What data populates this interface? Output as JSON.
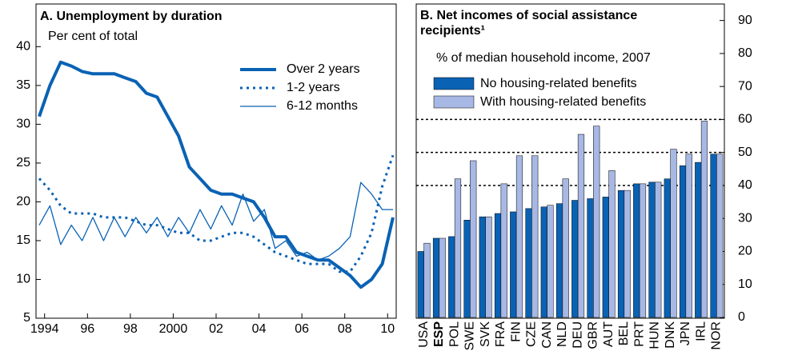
{
  "chart_data": [
    {
      "type": "line",
      "title": "A. Unemployment by duration",
      "subtitle": "Per cent of total",
      "x": [
        1993.75,
        1994.25,
        1994.75,
        1995.25,
        1995.75,
        1996.25,
        1996.75,
        1997.25,
        1997.75,
        1998.25,
        1998.75,
        1999.25,
        1999.75,
        2000.25,
        2000.75,
        2001.25,
        2001.75,
        2002.25,
        2002.75,
        2003.25,
        2003.75,
        2004.25,
        2004.75,
        2005.25,
        2005.75,
        2006.25,
        2006.75,
        2007.25,
        2007.75,
        2008.25,
        2008.75,
        2009.25,
        2009.75,
        2010.25
      ],
      "series": [
        {
          "name": "Over 2 years",
          "color": "#0a62b4",
          "style": "solid",
          "width": 4,
          "values": [
            31,
            35,
            38,
            37.5,
            36.8,
            36.5,
            36.5,
            36.5,
            36,
            35.5,
            34,
            33.5,
            31,
            28.5,
            24.5,
            23,
            21.5,
            21,
            21,
            20.5,
            20,
            18,
            15.5,
            15.5,
            13.5,
            13,
            12.5,
            12.5,
            11.5,
            10.5,
            9,
            10,
            12,
            18
          ]
        },
        {
          "name": "1-2 years",
          "color": "#0a62b4",
          "style": "dotted",
          "width": 3,
          "values": [
            23,
            21.5,
            19.5,
            18.5,
            18.5,
            18.5,
            18,
            18,
            18,
            17.5,
            17,
            17,
            16.5,
            16,
            16,
            15,
            15,
            15.5,
            16,
            16,
            15.5,
            14.5,
            13.5,
            13,
            12.5,
            12,
            12,
            12,
            11,
            11,
            13,
            16,
            22,
            26
          ]
        },
        {
          "name": "6-12 months",
          "color": "#0a62b4",
          "style": "solid",
          "width": 1.3,
          "values": [
            17,
            19.5,
            14.5,
            17,
            15,
            18,
            15,
            18,
            15.5,
            18,
            16,
            18,
            15.5,
            18,
            16,
            19,
            16.5,
            19.5,
            17,
            21,
            17.5,
            19,
            14,
            15,
            13,
            13.5,
            12.5,
            13,
            14,
            15.5,
            22.5,
            21,
            19,
            19
          ]
        }
      ],
      "xlim": [
        1993.6,
        2010.4
      ],
      "xticks": [
        {
          "value": 1994,
          "label": "1994"
        },
        {
          "value": 1996,
          "label": "96"
        },
        {
          "value": 1998,
          "label": "98"
        },
        {
          "value": 2000,
          "label": "2000"
        },
        {
          "value": 2002,
          "label": "02"
        },
        {
          "value": 2004,
          "label": "04"
        },
        {
          "value": 2006,
          "label": "06"
        },
        {
          "value": 2008,
          "label": "08"
        },
        {
          "value": 2010,
          "label": "10"
        }
      ],
      "ylim": [
        5,
        45.5
      ],
      "yticks": [
        5,
        10,
        15,
        20,
        25,
        30,
        35,
        40
      ]
    },
    {
      "type": "bar",
      "title": "B. Net incomes of social assistance recipients¹",
      "subtitle": "% of median household income, 2007",
      "categories": [
        "USA",
        "ESP",
        "POL",
        "SWE",
        "SVK",
        "FRA",
        "FIN",
        "CZE",
        "CAN",
        "NLD",
        "DEU",
        "GBR",
        "AUT",
        "BEL",
        "PRT",
        "HUN",
        "DNK",
        "JPN",
        "IRL",
        "NOR"
      ],
      "series": [
        {
          "name": "No housing-related benefits",
          "color": "#0a62b4",
          "values": [
            20,
            24,
            24.5,
            29.5,
            30.5,
            31.5,
            32,
            33,
            33.5,
            34.5,
            35.5,
            36,
            36.5,
            38.5,
            40.5,
            41,
            42,
            46,
            47,
            49.5
          ]
        },
        {
          "name": "With housing-related benefits",
          "color": "#a8b8e4",
          "values": [
            22.5,
            24,
            42,
            47.5,
            30.5,
            40.5,
            49,
            49,
            34,
            42,
            55.5,
            58,
            44.5,
            38.5,
            40.5,
            41,
            51,
            49.5,
            59.5,
            49.5
          ]
        }
      ],
      "ylim": [
        0,
        95
      ],
      "yticks": [
        0,
        10,
        20,
        30,
        40,
        50,
        60,
        70,
        80,
        90
      ],
      "reference_lines": [
        40,
        50,
        60
      ]
    }
  ]
}
